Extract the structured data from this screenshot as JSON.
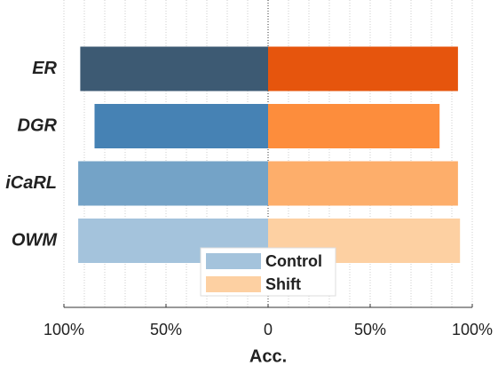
{
  "chart_data": {
    "type": "butterfly-bar",
    "x_label": "Acc.",
    "categories": [
      "ER",
      "DGR",
      "iCaRL",
      "OWM"
    ],
    "series": [
      {
        "name": "Control",
        "side": "left",
        "color": "#a4c3dc",
        "colors": [
          "#3d5a73",
          "#4682b4",
          "#74a3c7",
          "#a4c3dc"
        ],
        "values": [
          92,
          85,
          93,
          93
        ]
      },
      {
        "name": "Shift",
        "side": "right",
        "color": "#fdd0a2",
        "colors": [
          "#e6550d",
          "#fd8d3c",
          "#fdae6b",
          "#fdd0a2"
        ],
        "values": [
          93,
          84,
          93,
          94
        ]
      }
    ],
    "xlim": [
      -100,
      100
    ],
    "xticks": [
      {
        "value": -100,
        "label": "100%"
      },
      {
        "value": -50,
        "label": "50%"
      },
      0,
      {
        "value": 50,
        "label": "50%"
      },
      {
        "value": 100,
        "label": "100%"
      }
    ],
    "xminorticks": [
      -90,
      -80,
      -70,
      -60,
      -40,
      -30,
      -20,
      -10,
      10,
      20,
      30,
      40,
      60,
      70,
      80,
      90
    ],
    "grid": true,
    "legend": "lower center"
  }
}
